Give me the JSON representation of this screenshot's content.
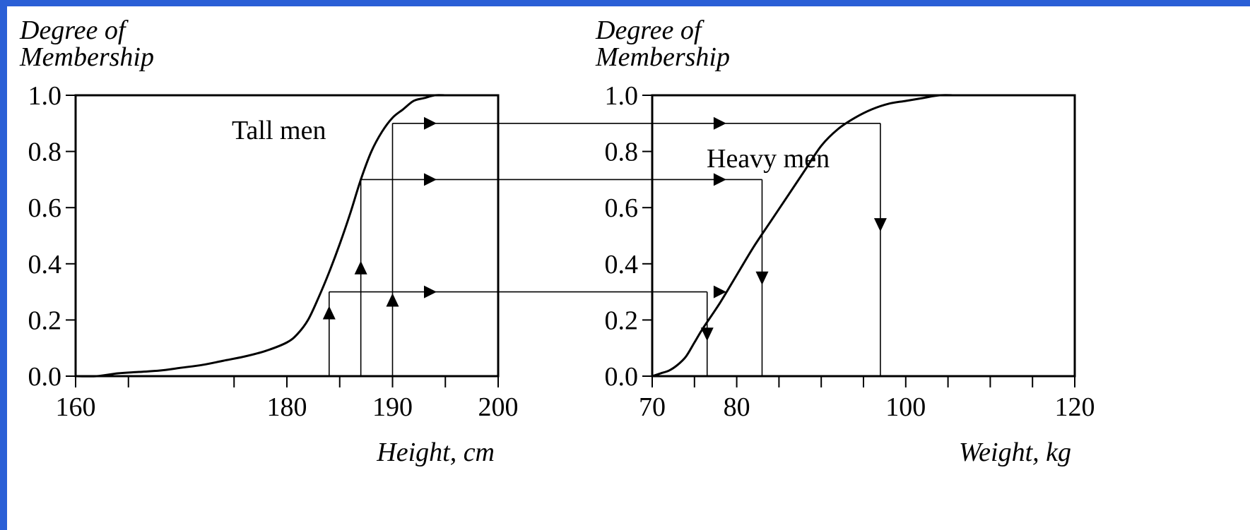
{
  "chart_data": [
    {
      "type": "line",
      "ylabel": [
        "Degree of",
        "Membership"
      ],
      "xlabel": "Height, cm",
      "xlim": [
        160,
        200
      ],
      "ylim": [
        0,
        1
      ],
      "x_ticks": [
        160,
        180,
        190,
        200
      ],
      "x_minor_ticks": [
        165,
        175,
        185,
        195
      ],
      "y_ticks": [
        "0.0",
        "0.2",
        "0.4",
        "0.6",
        "0.8",
        "1.0"
      ],
      "annotation": "Tall men",
      "series": [
        {
          "x": [
            160,
            162,
            164,
            166,
            168,
            170,
            172,
            174,
            176,
            178,
            180,
            181,
            182,
            183,
            184,
            185,
            186,
            187,
            188,
            189,
            190,
            191,
            192,
            193,
            194,
            195
          ],
          "y": [
            0,
            0,
            0.01,
            0.015,
            0.02,
            0.03,
            0.04,
            0.055,
            0.07,
            0.09,
            0.12,
            0.15,
            0.2,
            0.28,
            0.37,
            0.47,
            0.58,
            0.7,
            0.8,
            0.87,
            0.92,
            0.95,
            0.98,
            0.99,
            1,
            1
          ]
        }
      ],
      "mapping_points": [
        {
          "x": 184,
          "y": 0.3
        },
        {
          "x": 187,
          "y": 0.7
        },
        {
          "x": 190,
          "y": 0.9
        }
      ]
    },
    {
      "type": "line",
      "ylabel": [
        "Degree of",
        "Membership"
      ],
      "xlabel": "Weight, kg",
      "xlim": [
        70,
        120
      ],
      "ylim": [
        0,
        1
      ],
      "x_ticks": [
        70,
        80,
        100,
        120
      ],
      "x_minor_ticks": [
        75,
        85,
        90,
        95,
        105,
        110,
        115
      ],
      "y_ticks": [
        "0.0",
        "0.2",
        "0.4",
        "0.6",
        "0.8",
        "1.0"
      ],
      "annotation": "Heavy men",
      "series": [
        {
          "x": [
            70,
            71,
            72,
            73,
            74,
            75,
            76,
            78,
            80,
            82,
            84,
            86,
            88,
            90,
            92,
            94,
            96,
            98,
            100,
            102,
            104,
            106,
            108,
            110,
            112
          ],
          "y": [
            0,
            0.01,
            0.02,
            0.04,
            0.07,
            0.12,
            0.17,
            0.26,
            0.36,
            0.46,
            0.55,
            0.64,
            0.73,
            0.82,
            0.88,
            0.92,
            0.95,
            0.97,
            0.98,
            0.99,
            1,
            1,
            1,
            1,
            1
          ]
        }
      ],
      "mapping_points": [
        {
          "x": 76.5,
          "y": 0.3
        },
        {
          "x": 83,
          "y": 0.7
        },
        {
          "x": 97,
          "y": 0.9
        }
      ]
    }
  ]
}
